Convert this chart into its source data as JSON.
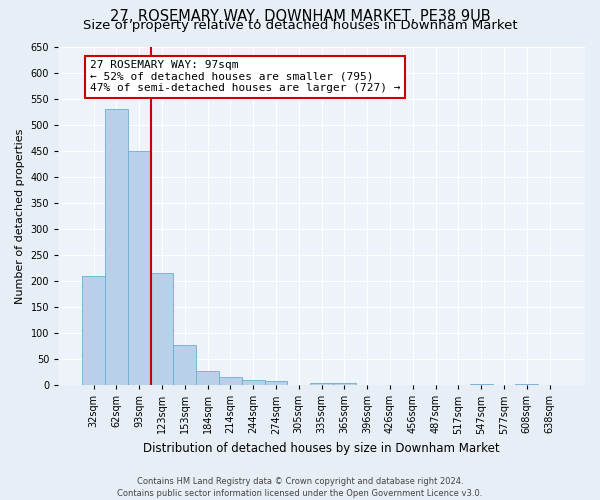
{
  "title": "27, ROSEMARY WAY, DOWNHAM MARKET, PE38 9UB",
  "subtitle": "Size of property relative to detached houses in Downham Market",
  "xlabel": "Distribution of detached houses by size in Downham Market",
  "ylabel": "Number of detached properties",
  "bar_labels": [
    "32sqm",
    "62sqm",
    "93sqm",
    "123sqm",
    "153sqm",
    "184sqm",
    "214sqm",
    "244sqm",
    "274sqm",
    "305sqm",
    "335sqm",
    "365sqm",
    "396sqm",
    "426sqm",
    "456sqm",
    "487sqm",
    "517sqm",
    "547sqm",
    "577sqm",
    "608sqm",
    "638sqm"
  ],
  "bar_values": [
    210,
    530,
    450,
    215,
    78,
    28,
    15,
    10,
    8,
    0,
    5,
    5,
    0,
    0,
    0,
    0,
    0,
    3,
    0,
    3,
    0
  ],
  "bar_color": "#b8d0e8",
  "bar_edge_color": "#6baed6",
  "ylim": [
    0,
    650
  ],
  "yticks": [
    0,
    50,
    100,
    150,
    200,
    250,
    300,
    350,
    400,
    450,
    500,
    550,
    600,
    650
  ],
  "vline_color": "#cc0000",
  "annotation_text": "27 ROSEMARY WAY: 97sqm\n← 52% of detached houses are smaller (795)\n47% of semi-detached houses are larger (727) →",
  "annotation_box_color": "#ffffff",
  "annotation_box_edge": "#cc0000",
  "footer_line1": "Contains HM Land Registry data © Crown copyright and database right 2024.",
  "footer_line2": "Contains public sector information licensed under the Open Government Licence v3.0.",
  "bg_color": "#e8eef5",
  "plot_bg_color": "#eef3fa",
  "grid_color": "#ffffff",
  "title_fontsize": 10.5,
  "subtitle_fontsize": 9.5,
  "xlabel_fontsize": 8.5,
  "ylabel_fontsize": 8,
  "tick_fontsize": 7,
  "footer_fontsize": 6,
  "annotation_fontsize": 8
}
